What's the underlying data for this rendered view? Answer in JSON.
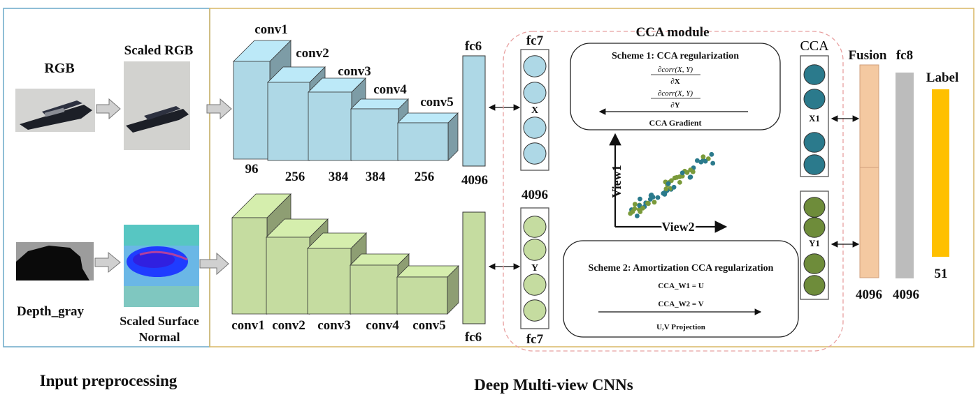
{
  "sections": {
    "input_preprocessing": "Input preprocessing",
    "deep_multiview": "Deep Multi-view CNNs"
  },
  "preprocessing": {
    "rgb": "RGB",
    "scaled_rgb": "Scaled RGB",
    "depth_gray": "Depth_gray",
    "scaled_surface_normal_line1": "Scaled Surface",
    "scaled_surface_normal_line2": "Normal"
  },
  "rgb_stream": {
    "conv_labels": [
      "conv1",
      "conv2",
      "conv3",
      "conv4",
      "conv5"
    ],
    "conv_sizes": [
      "96",
      "256",
      "384",
      "384",
      "256"
    ],
    "fc6_label": "fc6",
    "fc6_size": "4096",
    "fc7_label": "fc7",
    "fc7_size": "4096",
    "feature_name": "X"
  },
  "depth_stream": {
    "conv_labels": [
      "conv1",
      "conv2",
      "conv3",
      "conv4",
      "conv5"
    ],
    "fc6_label": "fc6",
    "fc7_label": "fc7",
    "feature_name": "Y"
  },
  "cca_module": {
    "title": "CCA module",
    "scheme1_title": "Scheme 1:   CCA regularization",
    "grad_x_num": "∂corr(X, Y)",
    "grad_x_den": "∂X",
    "grad_y_num": "∂corr(X, Y)",
    "grad_y_den": "∂Y",
    "scheme1_footer": "CCA Gradient",
    "scheme2_title": "Scheme 2:  Amortization CCA regularization",
    "scheme2_eq1": "CCA_W1 = U",
    "scheme2_eq2": "CCA_W2 = V",
    "scheme2_footer": "U,V Projection",
    "view1": "View1",
    "view2": "View2"
  },
  "cca_outputs": {
    "header": "CCA",
    "x1": "X1",
    "y1": "Y1"
  },
  "head": {
    "fusion": "Fusion",
    "fusion_size": "4096",
    "fc8": "fc8",
    "fc8_size": "4096",
    "label": "Label",
    "label_size": "51"
  },
  "colors": {
    "rgb_conv": "#aed8e6",
    "depth_conv": "#c5dca0",
    "cca_x_node": "#2b7a8c",
    "cca_y_node": "#6e8c3a",
    "fusion": "#f4c9a1",
    "fc8": "#bcbcbc",
    "label": "#ffc000",
    "panel_border_left": "#6aa9c8",
    "panel_border_right": "#d9b765",
    "cca_dashed": "#e8a0a0"
  },
  "icons": {
    "rgb_image": "stapler-photo",
    "scaled_rgb_image": "stapler-photo",
    "depth_image": "depth-map",
    "normal_image": "surface-normal-map",
    "scatter": "correlation-scatter"
  }
}
